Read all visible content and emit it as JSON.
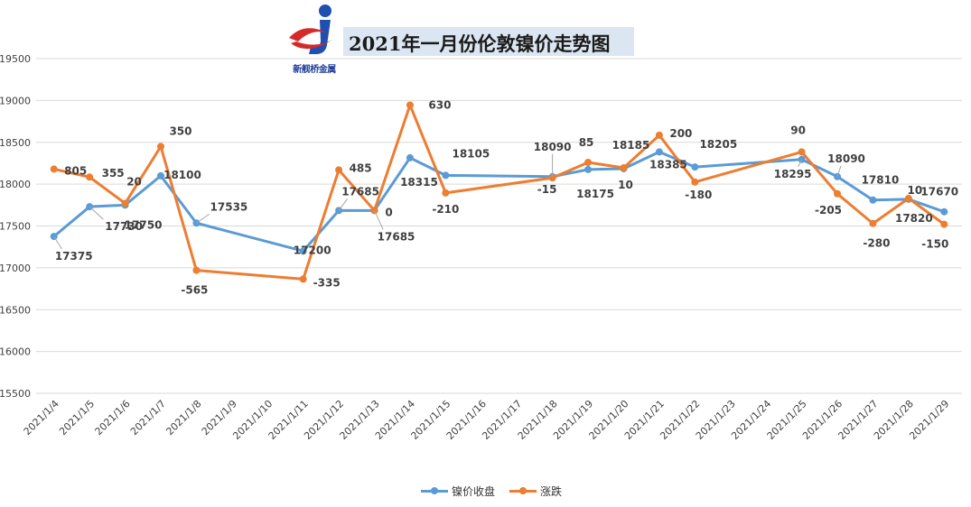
{
  "page": {
    "title": "2021年一月份伦敦镍价走势图",
    "logo_text": "新舰桥金属",
    "logo_icon": "company-logo-icon"
  },
  "legend": {
    "close_label": "镍价收盘",
    "change_label": "涨跌"
  },
  "colors": {
    "close": "#5b9bd5",
    "change": "#ed7d31",
    "grid": "#d9d9d9",
    "axis_text": "#404040",
    "label_text": "#404040"
  },
  "chart_data": {
    "type": "line",
    "title": "2021年一月份伦敦镍价走势图",
    "xlabel": "",
    "ylabel": "",
    "ylim": [
      15500,
      19500
    ],
    "yticks": [
      15500,
      16000,
      16500,
      17000,
      17500,
      18000,
      18500,
      19000,
      19500
    ],
    "grid": true,
    "legend_position": "bottom",
    "categories": [
      "2021/1/4",
      "2021/1/5",
      "2021/1/6",
      "2021/1/7",
      "2021/1/8",
      "2021/1/9",
      "2021/1/10",
      "2021/1/11",
      "2021/1/12",
      "2021/1/13",
      "2021/1/14",
      "2021/1/15",
      "2021/1/16",
      "2021/1/17",
      "2021/1/18",
      "2021/1/19",
      "2021/1/20",
      "2021/1/21",
      "2021/1/22",
      "2021/1/23",
      "2021/1/24",
      "2021/1/25",
      "2021/1/26",
      "2021/1/27",
      "2021/1/28",
      "2021/1/29"
    ],
    "series": [
      {
        "name": "镍价收盘",
        "values": [
          17375,
          17730,
          17750,
          18100,
          17535,
          null,
          null,
          17200,
          17685,
          17685,
          18315,
          18105,
          null,
          null,
          18090,
          18175,
          18185,
          18385,
          18205,
          null,
          null,
          18295,
          18090,
          17810,
          17820,
          17670
        ]
      },
      {
        "name": "涨跌",
        "values": [
          805,
          355,
          20,
          350,
          -565,
          null,
          null,
          -335,
          485,
          0,
          630,
          -210,
          null,
          null,
          -15,
          85,
          10,
          200,
          -180,
          null,
          null,
          90,
          -205,
          -280,
          10,
          -150
        ],
        "plotted_on_primary_axis_as": [
          18180,
          18085,
          17770,
          18450,
          16970,
          null,
          null,
          16865,
          18170,
          17685,
          18945,
          17895,
          null,
          null,
          18075,
          18260,
          18195,
          18585,
          18025,
          null,
          null,
          18385,
          17885,
          17530,
          17830,
          17520
        ]
      }
    ]
  }
}
